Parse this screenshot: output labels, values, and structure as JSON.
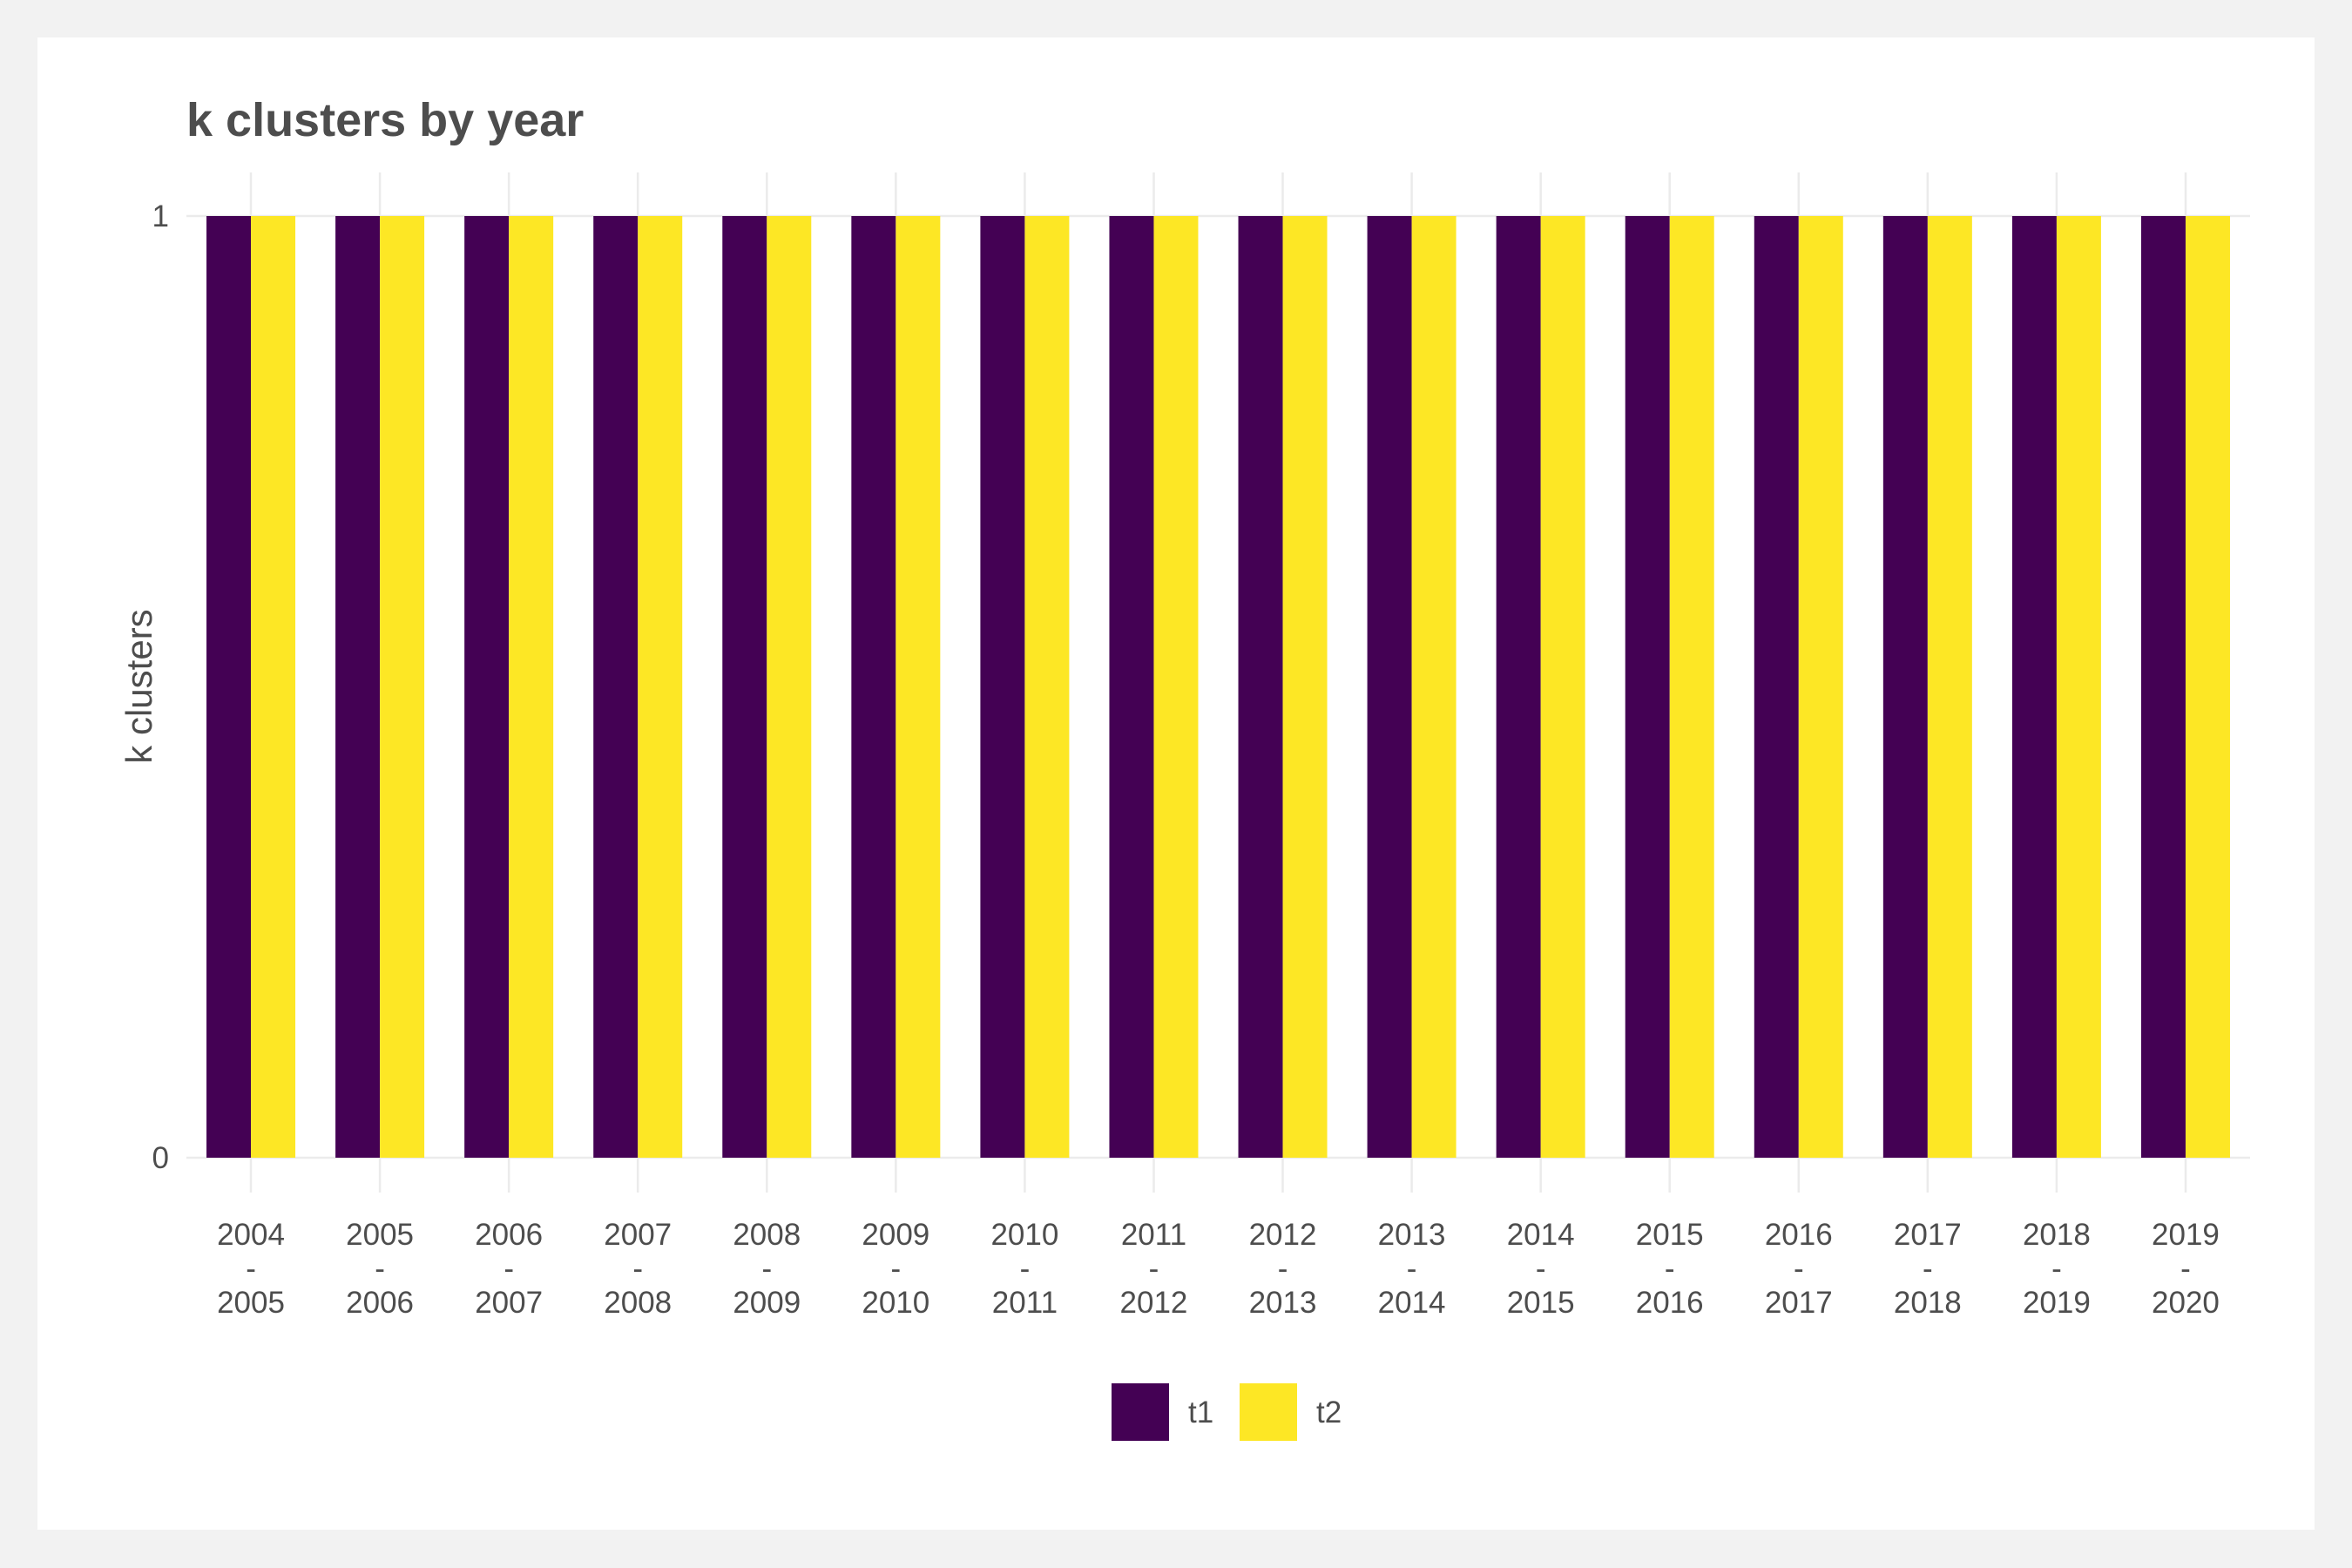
{
  "chart_data": {
    "type": "bar",
    "title": "k clusters by year",
    "xlabel": "",
    "ylabel": "k clusters",
    "ylim": [
      0,
      1
    ],
    "yticks": [
      "0",
      "1"
    ],
    "categories": [
      [
        "2004",
        "-",
        "2005"
      ],
      [
        "2005",
        "-",
        "2006"
      ],
      [
        "2006",
        "-",
        "2007"
      ],
      [
        "2007",
        "-",
        "2008"
      ],
      [
        "2008",
        "-",
        "2009"
      ],
      [
        "2009",
        "-",
        "2010"
      ],
      [
        "2010",
        "-",
        "2011"
      ],
      [
        "2011",
        "-",
        "2012"
      ],
      [
        "2012",
        "-",
        "2013"
      ],
      [
        "2013",
        "-",
        "2014"
      ],
      [
        "2014",
        "-",
        "2015"
      ],
      [
        "2015",
        "-",
        "2016"
      ],
      [
        "2016",
        "-",
        "2017"
      ],
      [
        "2017",
        "-",
        "2018"
      ],
      [
        "2018",
        "-",
        "2019"
      ],
      [
        "2019",
        "-",
        "2020"
      ]
    ],
    "series": [
      {
        "name": "t1",
        "color": "#440154",
        "values": [
          1,
          1,
          1,
          1,
          1,
          1,
          1,
          1,
          1,
          1,
          1,
          1,
          1,
          1,
          1,
          1
        ]
      },
      {
        "name": "t2",
        "color": "#fde725",
        "values": [
          1,
          1,
          1,
          1,
          1,
          1,
          1,
          1,
          1,
          1,
          1,
          1,
          1,
          1,
          1,
          1
        ]
      }
    ],
    "legend_position": "bottom",
    "grid": true
  }
}
